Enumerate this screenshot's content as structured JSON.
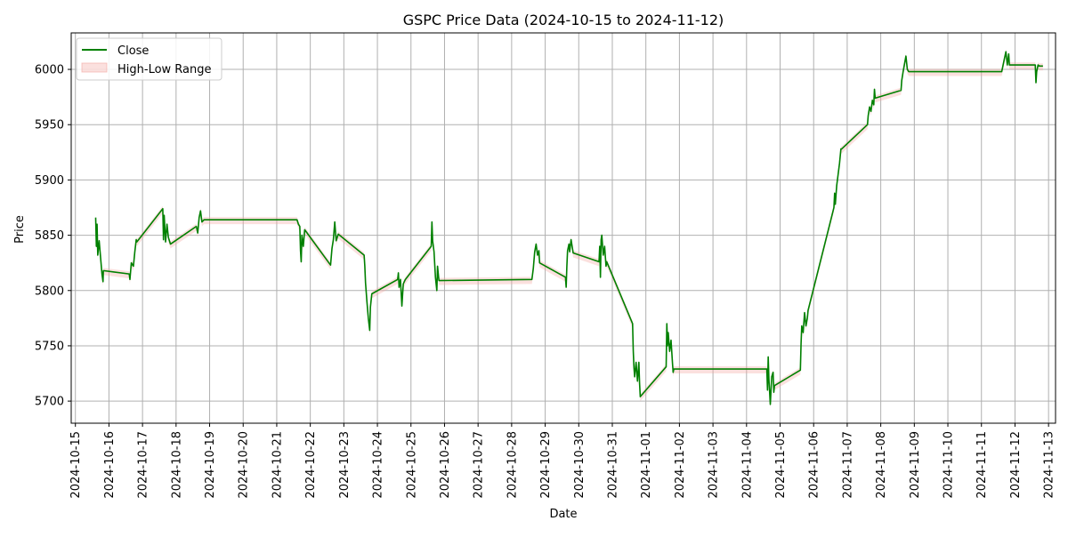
{
  "chart_data": {
    "type": "line",
    "title": "GSPC Price Data (2024-10-15 to 2024-11-12)",
    "xlabel": "Date",
    "ylabel": "Price",
    "xlim": [
      "2024-10-14T21:00",
      "2024-11-13T05:00"
    ],
    "ylim": [
      5680,
      6033
    ],
    "x_ticks": [
      "2024-10-15",
      "2024-10-16",
      "2024-10-17",
      "2024-10-18",
      "2024-10-19",
      "2024-10-20",
      "2024-10-21",
      "2024-10-22",
      "2024-10-23",
      "2024-10-24",
      "2024-10-25",
      "2024-10-26",
      "2024-10-27",
      "2024-10-28",
      "2024-10-29",
      "2024-10-30",
      "2024-10-31",
      "2024-11-01",
      "2024-11-02",
      "2024-11-03",
      "2024-11-04",
      "2024-11-05",
      "2024-11-06",
      "2024-11-07",
      "2024-11-08",
      "2024-11-09",
      "2024-11-10",
      "2024-11-11",
      "2024-11-12",
      "2024-11-13"
    ],
    "y_ticks": [
      5700,
      5750,
      5800,
      5850,
      5900,
      5950,
      6000
    ],
    "grid": true,
    "legend_position": "upper-left",
    "legend": [
      "Close",
      "High-Low Range"
    ],
    "colors": {
      "close": "#008000",
      "range_fill": "#f4a6a0"
    },
    "series": [
      {
        "name": "Close",
        "points": [
          [
            "2024-10-15T14:30",
            5866
          ],
          [
            "2024-10-15T15:00",
            5840
          ],
          [
            "2024-10-15T15:30",
            5860
          ],
          [
            "2024-10-15T16:00",
            5832
          ],
          [
            "2024-10-15T17:00",
            5845
          ],
          [
            "2024-10-15T18:00",
            5830
          ],
          [
            "2024-10-15T19:00",
            5815
          ],
          [
            "2024-10-15T19:45",
            5808
          ],
          [
            "2024-10-15T20:00",
            5818
          ],
          [
            "2024-10-16T14:30",
            5815
          ],
          [
            "2024-10-16T15:00",
            5810
          ],
          [
            "2024-10-16T16:00",
            5825
          ],
          [
            "2024-10-16T17:30",
            5822
          ],
          [
            "2024-10-16T18:30",
            5835
          ],
          [
            "2024-10-16T19:30",
            5846
          ],
          [
            "2024-10-16T20:00",
            5844
          ],
          [
            "2024-10-17T14:30",
            5874
          ],
          [
            "2024-10-17T15:00",
            5846
          ],
          [
            "2024-10-17T15:30",
            5868
          ],
          [
            "2024-10-17T16:30",
            5844
          ],
          [
            "2024-10-17T17:30",
            5860
          ],
          [
            "2024-10-17T18:30",
            5848
          ],
          [
            "2024-10-17T20:00",
            5842
          ],
          [
            "2024-10-18T14:30",
            5858
          ],
          [
            "2024-10-18T15:30",
            5852
          ],
          [
            "2024-10-18T16:30",
            5866
          ],
          [
            "2024-10-18T17:30",
            5872
          ],
          [
            "2024-10-18T18:30",
            5862
          ],
          [
            "2024-10-18T20:00",
            5864
          ],
          [
            "2024-10-21T14:30",
            5864
          ],
          [
            "2024-10-21T15:30",
            5860
          ],
          [
            "2024-10-21T16:30",
            5858
          ],
          [
            "2024-10-21T17:00",
            5836
          ],
          [
            "2024-10-21T17:30",
            5826
          ],
          [
            "2024-10-21T18:00",
            5850
          ],
          [
            "2024-10-21T19:00",
            5840
          ],
          [
            "2024-10-21T20:00",
            5855
          ],
          [
            "2024-10-22T14:30",
            5823
          ],
          [
            "2024-10-22T15:30",
            5838
          ],
          [
            "2024-10-22T16:30",
            5846
          ],
          [
            "2024-10-22T17:30",
            5862
          ],
          [
            "2024-10-22T18:30",
            5845
          ],
          [
            "2024-10-22T20:00",
            5851
          ],
          [
            "2024-10-23T14:30",
            5832
          ],
          [
            "2024-10-23T15:00",
            5822
          ],
          [
            "2024-10-23T15:30",
            5807
          ],
          [
            "2024-10-23T16:30",
            5790
          ],
          [
            "2024-10-23T17:30",
            5775
          ],
          [
            "2024-10-23T18:30",
            5764
          ],
          [
            "2024-10-23T19:00",
            5785
          ],
          [
            "2024-10-23T20:00",
            5797
          ],
          [
            "2024-10-24T14:30",
            5810
          ],
          [
            "2024-10-24T15:00",
            5816
          ],
          [
            "2024-10-24T15:30",
            5803
          ],
          [
            "2024-10-24T16:30",
            5810
          ],
          [
            "2024-10-24T17:30",
            5786
          ],
          [
            "2024-10-24T18:30",
            5806
          ],
          [
            "2024-10-24T20:00",
            5810
          ],
          [
            "2024-10-25T14:30",
            5840
          ],
          [
            "2024-10-25T15:00",
            5862
          ],
          [
            "2024-10-25T15:30",
            5845
          ],
          [
            "2024-10-25T16:30",
            5835
          ],
          [
            "2024-10-25T17:30",
            5812
          ],
          [
            "2024-10-25T18:30",
            5800
          ],
          [
            "2024-10-25T19:00",
            5822
          ],
          [
            "2024-10-25T20:00",
            5809
          ],
          [
            "2024-10-28T14:30",
            5810
          ],
          [
            "2024-10-28T15:30",
            5820
          ],
          [
            "2024-10-28T16:30",
            5835
          ],
          [
            "2024-10-28T17:30",
            5842
          ],
          [
            "2024-10-28T18:30",
            5832
          ],
          [
            "2024-10-28T19:30",
            5836
          ],
          [
            "2024-10-28T20:00",
            5825
          ],
          [
            "2024-10-29T14:30",
            5812
          ],
          [
            "2024-10-29T15:00",
            5803
          ],
          [
            "2024-10-29T15:30",
            5822
          ],
          [
            "2024-10-29T16:00",
            5836
          ],
          [
            "2024-10-29T17:00",
            5842
          ],
          [
            "2024-10-29T17:30",
            5835
          ],
          [
            "2024-10-29T18:30",
            5846
          ],
          [
            "2024-10-29T20:00",
            5834
          ],
          [
            "2024-10-30T14:30",
            5826
          ],
          [
            "2024-10-30T15:00",
            5840
          ],
          [
            "2024-10-30T15:30",
            5812
          ],
          [
            "2024-10-30T16:00",
            5846
          ],
          [
            "2024-10-30T16:30",
            5850
          ],
          [
            "2024-10-30T17:30",
            5832
          ],
          [
            "2024-10-30T18:30",
            5840
          ],
          [
            "2024-10-30T19:30",
            5822
          ],
          [
            "2024-10-30T20:00",
            5826
          ],
          [
            "2024-10-31T14:30",
            5770
          ],
          [
            "2024-10-31T15:00",
            5745
          ],
          [
            "2024-10-31T15:30",
            5730
          ],
          [
            "2024-10-31T16:00",
            5722
          ],
          [
            "2024-10-31T17:00",
            5735
          ],
          [
            "2024-10-31T18:00",
            5718
          ],
          [
            "2024-10-31T19:00",
            5735
          ],
          [
            "2024-10-31T19:30",
            5716
          ],
          [
            "2024-10-31T20:00",
            5704
          ],
          [
            "2024-11-01T14:30",
            5731
          ],
          [
            "2024-11-01T15:00",
            5770
          ],
          [
            "2024-11-01T15:30",
            5750
          ],
          [
            "2024-11-01T16:00",
            5762
          ],
          [
            "2024-11-01T17:00",
            5745
          ],
          [
            "2024-11-01T18:00",
            5755
          ],
          [
            "2024-11-01T19:00",
            5735
          ],
          [
            "2024-11-01T19:30",
            5726
          ],
          [
            "2024-11-01T20:00",
            5729
          ],
          [
            "2024-11-04T14:30",
            5729
          ],
          [
            "2024-11-04T15:00",
            5710
          ],
          [
            "2024-11-04T15:30",
            5740
          ],
          [
            "2024-11-04T16:00",
            5720
          ],
          [
            "2024-11-04T17:00",
            5697
          ],
          [
            "2024-11-04T18:00",
            5722
          ],
          [
            "2024-11-04T19:00",
            5726
          ],
          [
            "2024-11-04T19:30",
            5708
          ],
          [
            "2024-11-04T20:00",
            5714
          ],
          [
            "2024-11-05T14:30",
            5728
          ],
          [
            "2024-11-05T15:00",
            5752
          ],
          [
            "2024-11-05T15:30",
            5768
          ],
          [
            "2024-11-05T16:30",
            5762
          ],
          [
            "2024-11-05T17:30",
            5780
          ],
          [
            "2024-11-05T18:30",
            5768
          ],
          [
            "2024-11-05T19:30",
            5775
          ],
          [
            "2024-11-05T20:00",
            5782
          ],
          [
            "2024-11-06T14:30",
            5875
          ],
          [
            "2024-11-06T15:00",
            5888
          ],
          [
            "2024-11-06T15:30",
            5878
          ],
          [
            "2024-11-06T16:30",
            5895
          ],
          [
            "2024-11-06T17:30",
            5905
          ],
          [
            "2024-11-06T18:30",
            5915
          ],
          [
            "2024-11-06T19:30",
            5928
          ],
          [
            "2024-11-06T20:00",
            5928
          ],
          [
            "2024-11-07T14:30",
            5950
          ],
          [
            "2024-11-07T15:00",
            5958
          ],
          [
            "2024-11-07T16:00",
            5966
          ],
          [
            "2024-11-07T17:00",
            5962
          ],
          [
            "2024-11-07T18:00",
            5972
          ],
          [
            "2024-11-07T19:00",
            5968
          ],
          [
            "2024-11-07T19:30",
            5982
          ],
          [
            "2024-11-07T20:00",
            5974
          ],
          [
            "2024-11-08T14:30",
            5981
          ],
          [
            "2024-11-08T15:00",
            5990
          ],
          [
            "2024-11-08T16:00",
            5998
          ],
          [
            "2024-11-08T17:00",
            6005
          ],
          [
            "2024-11-08T18:00",
            6012
          ],
          [
            "2024-11-08T19:00",
            6000
          ],
          [
            "2024-11-08T20:00",
            5998
          ],
          [
            "2024-11-11T14:30",
            5998
          ],
          [
            "2024-11-11T15:30",
            6004
          ],
          [
            "2024-11-11T16:30",
            6010
          ],
          [
            "2024-11-11T17:30",
            6016
          ],
          [
            "2024-11-11T18:30",
            6004
          ],
          [
            "2024-11-11T19:30",
            6014
          ],
          [
            "2024-11-11T20:00",
            6004
          ],
          [
            "2024-11-12T14:30",
            6004
          ],
          [
            "2024-11-12T15:00",
            5988
          ],
          [
            "2024-11-12T15:30",
            5998
          ],
          [
            "2024-11-12T16:30",
            6004
          ],
          [
            "2024-11-12T17:30",
            6003
          ],
          [
            "2024-11-12T20:00",
            6003
          ]
        ]
      }
    ]
  }
}
